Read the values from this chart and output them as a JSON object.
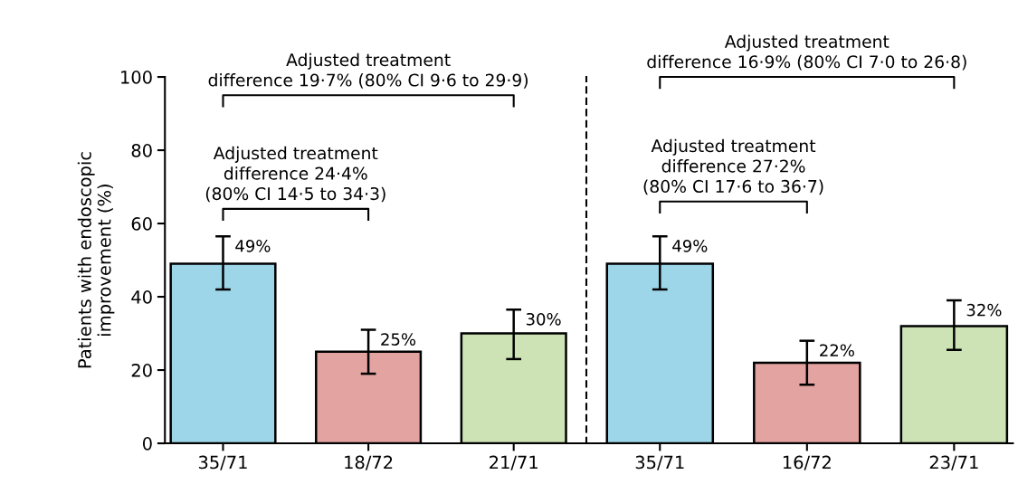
{
  "chart_data": [
    {
      "type": "bar",
      "categories": [
        "35/71",
        "18/72",
        "21/71"
      ],
      "values": [
        49,
        25,
        30
      ],
      "colors": [
        "#9dd6e8",
        "#e3a3a0",
        "#cde3b5"
      ],
      "errors": [
        [
          42,
          56.5
        ],
        [
          19,
          31
        ],
        [
          23,
          36.5
        ]
      ],
      "value_labels": [
        "49%",
        "25%",
        "30%"
      ],
      "ylabel": "Patients with endoscopic\nimprovement (%)",
      "ylim": [
        0,
        100
      ],
      "yticks": [
        0,
        20,
        40,
        60,
        80,
        100
      ],
      "grid": false,
      "annotations": [
        "Adjusted treatment\ndifference 19·7% (80% CI 9·6 to 29·9)",
        "Adjusted treatment\ndifference 24·4%\n(80% CI 14·5 to 34·3)"
      ]
    },
    {
      "type": "bar",
      "categories": [
        "35/71",
        "16/72",
        "23/71"
      ],
      "values": [
        49,
        22,
        32
      ],
      "colors": [
        "#9dd6e8",
        "#e3a3a0",
        "#cde3b5"
      ],
      "errors": [
        [
          42,
          56.5
        ],
        [
          16,
          28
        ],
        [
          25.5,
          39
        ]
      ],
      "value_labels": [
        "49%",
        "22%",
        "32%"
      ],
      "ylim": [
        0,
        100
      ],
      "yticks": [
        0,
        20,
        40,
        60,
        80,
        100
      ],
      "grid": false,
      "tick_labels": "x",
      "annotations": [
        "Adjusted treatment\ndifference 16·9% (80% CI 7·0 to 26·8)",
        "Adjusted treatment\ndifference 27·2%\n(80% CI 17·6 to 36·7)"
      ]
    }
  ]
}
